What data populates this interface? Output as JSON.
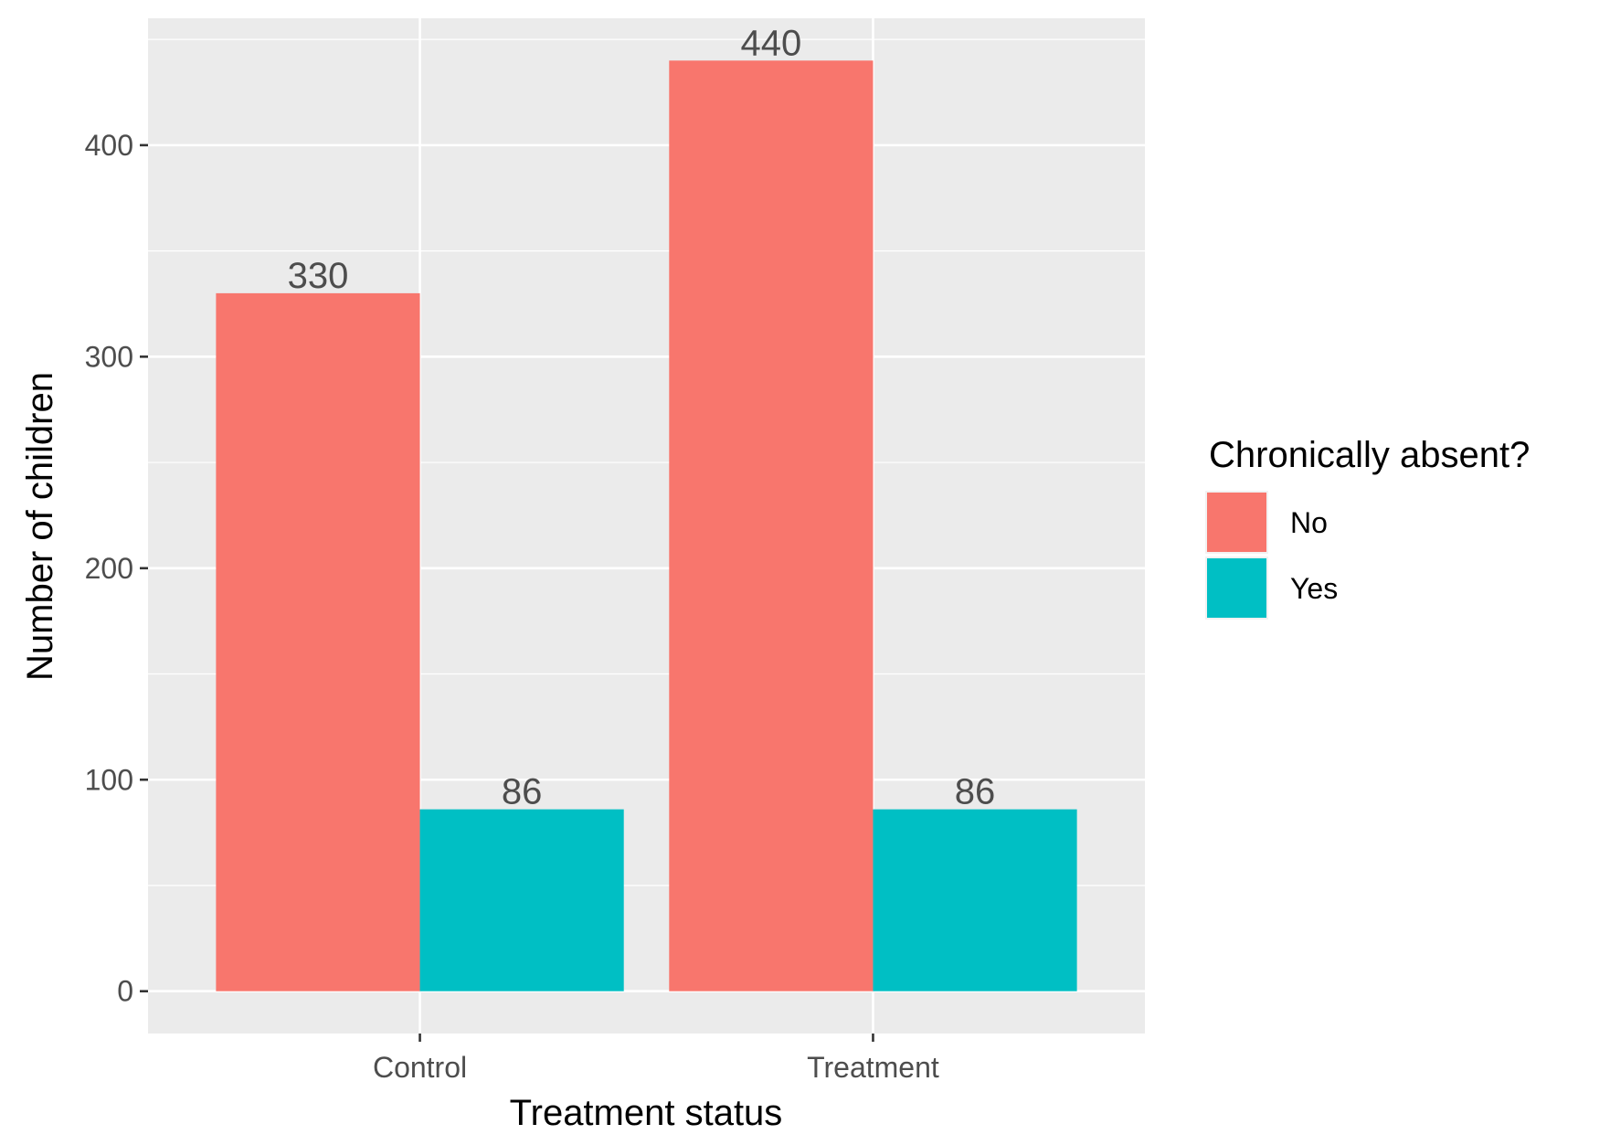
{
  "chart_data": {
    "type": "bar",
    "categories": [
      "Control",
      "Treatment"
    ],
    "series": [
      {
        "name": "No",
        "values": [
          330,
          440
        ],
        "color": "#F8766D"
      },
      {
        "name": "Yes",
        "values": [
          86,
          86
        ],
        "color": "#00BFC4"
      }
    ],
    "xlabel": "Treatment status",
    "ylabel": "Number of children",
    "ylim": [
      -20,
      460
    ],
    "yticks": [
      0,
      100,
      200,
      300,
      400
    ],
    "y_minor_ticks": [
      50,
      150,
      250,
      350,
      450
    ],
    "legend_title": "Chronically absent?",
    "legend_position": "right",
    "grid": true,
    "panel_background": "#EBEBEB",
    "grid_color": "#FFFFFF"
  }
}
